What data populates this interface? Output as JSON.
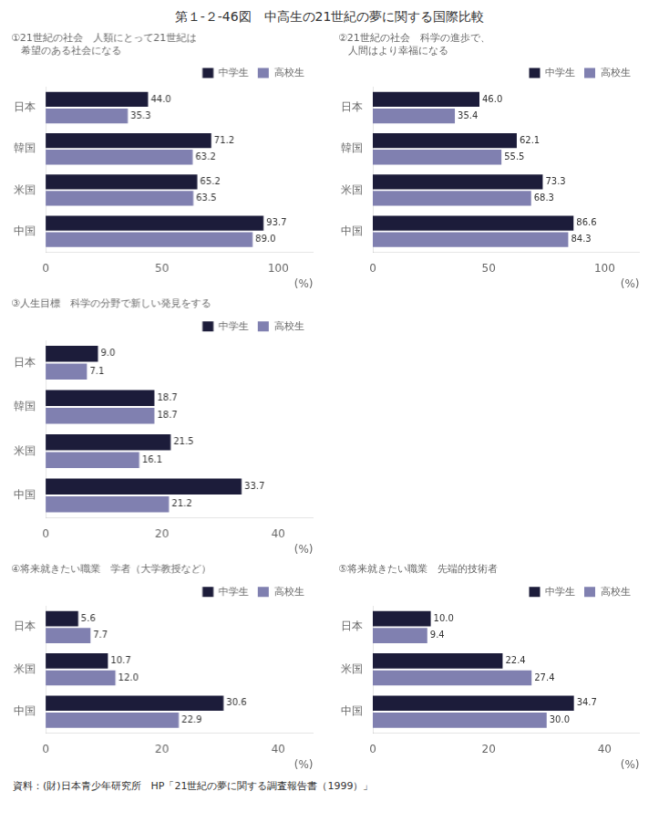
{
  "title": "第１-２-46図　中高生の21世紀の夢に関する国際比較",
  "annotations": [
    "資料：(財)日本青少年研究所　HP「21世紀の夢に関する調査報告書（1999）」"
  ],
  "chart_data": [
    {
      "type": "bar",
      "orientation": "horizontal",
      "title": "①21世紀の社会　人類にとって21世紀は\n　希望のある社会になる",
      "categories": [
        "日本",
        "韓国",
        "米国",
        "中国"
      ],
      "series": [
        {
          "name": "中学生",
          "color": "#1c1c3a",
          "values": [
            44.0,
            71.2,
            65.2,
            93.7
          ],
          "value_labels": [
            "44.0",
            "71.2",
            "65.2",
            "93.7"
          ]
        },
        {
          "name": "高校生",
          "color": "#8080b0",
          "values": [
            35.3,
            63.2,
            63.5,
            89.0
          ],
          "value_labels": [
            "35.3",
            "63.2",
            "63.5",
            "89.0"
          ]
        }
      ],
      "xlim": [
        0,
        115
      ],
      "xticks": [
        0,
        50,
        100
      ],
      "annotations": [
        "(%)"
      ],
      "data_labels": true,
      "grid": false,
      "legend": "upper right"
    },
    {
      "type": "bar",
      "orientation": "horizontal",
      "title": "②21世紀の社会　科学の進歩で、\n　人間はより幸福になる",
      "categories": [
        "日本",
        "韓国",
        "米国",
        "中国"
      ],
      "series": [
        {
          "name": "中学生",
          "color": "#1c1c3a",
          "values": [
            46.0,
            62.1,
            73.3,
            86.6
          ],
          "value_labels": [
            "46.0",
            "62.1",
            "73.3",
            "86.6"
          ]
        },
        {
          "name": "高校生",
          "color": "#8080b0",
          "values": [
            35.4,
            55.5,
            68.3,
            84.3
          ],
          "value_labels": [
            "35.4",
            "55.5",
            "68.3",
            "84.3"
          ]
        }
      ],
      "xlim": [
        0,
        115
      ],
      "xticks": [
        0,
        50,
        100
      ],
      "annotations": [
        "(%)"
      ],
      "data_labels": true,
      "grid": false,
      "legend": "upper right"
    },
    {
      "type": "bar",
      "orientation": "horizontal",
      "title": "③人生目標　科学の分野で新しい発見をする",
      "categories": [
        "日本",
        "韓国",
        "米国",
        "中国"
      ],
      "series": [
        {
          "name": "中学生",
          "color": "#1c1c3a",
          "values": [
            9.0,
            18.7,
            21.5,
            33.7
          ],
          "value_labels": [
            "9.0",
            "18.7",
            "21.5",
            "33.7"
          ]
        },
        {
          "name": "高校生",
          "color": "#8080b0",
          "values": [
            7.1,
            18.7,
            16.1,
            21.2
          ],
          "value_labels": [
            "7.1",
            "18.7",
            "16.1",
            "21.2"
          ]
        }
      ],
      "xlim": [
        0,
        46
      ],
      "xticks": [
        0,
        20,
        40
      ],
      "annotations": [
        "(%)"
      ],
      "data_labels": true,
      "grid": false,
      "legend": "upper right"
    },
    {
      "type": "bar",
      "orientation": "horizontal",
      "title": "④将来就きたい職業　学者（大学教授など）",
      "categories": [
        "日本",
        "米国",
        "中国"
      ],
      "series": [
        {
          "name": "中学生",
          "color": "#1c1c3a",
          "values": [
            5.6,
            10.7,
            30.6
          ],
          "value_labels": [
            "5.6",
            "10.7",
            "30.6"
          ]
        },
        {
          "name": "高校生",
          "color": "#8080b0",
          "values": [
            7.7,
            12.0,
            22.9
          ],
          "value_labels": [
            "7.7",
            "12.0",
            "22.9"
          ]
        }
      ],
      "xlim": [
        0,
        46
      ],
      "xticks": [
        0,
        20,
        40
      ],
      "annotations": [
        "(%)"
      ],
      "data_labels": true,
      "grid": false,
      "legend": "upper right"
    },
    {
      "type": "bar",
      "orientation": "horizontal",
      "title": "⑤将来就きたい職業　先端的技術者",
      "categories": [
        "日本",
        "米国",
        "中国"
      ],
      "series": [
        {
          "name": "中学生",
          "color": "#1c1c3a",
          "values": [
            10.0,
            22.4,
            34.7
          ],
          "value_labels": [
            "10.0",
            "22.4",
            "34.7"
          ]
        },
        {
          "name": "高校生",
          "color": "#8080b0",
          "values": [
            9.4,
            27.4,
            30.0
          ],
          "value_labels": [
            "9.4",
            "27.4",
            "30.0"
          ]
        }
      ],
      "xlim": [
        0,
        46
      ],
      "xticks": [
        0,
        20,
        40
      ],
      "annotations": [
        "(%)"
      ],
      "data_labels": true,
      "grid": false,
      "legend": "upper right"
    }
  ]
}
